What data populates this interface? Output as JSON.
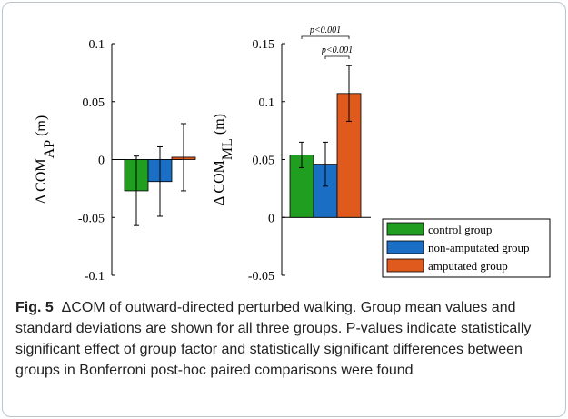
{
  "chart_data": [
    {
      "type": "bar",
      "ylabel": "Δ COM",
      "ylabel_sub": "AP",
      "ylabel_unit": "(m)",
      "ylim": [
        -0.1,
        0.1
      ],
      "yticks": [
        -0.1,
        -0.05,
        0,
        0.05,
        0.1
      ],
      "ytick_labels": [
        "-0.1",
        "-0.05",
        "0",
        "0.05",
        "0.1"
      ],
      "categories": [
        "control group",
        "non-amputated group",
        "amputated group"
      ],
      "values": [
        -0.027,
        -0.019,
        0.002
      ],
      "errors": [
        0.03,
        0.03,
        0.029
      ],
      "colors": [
        "#1f9e1f",
        "#1a6fc4",
        "#e05a1e"
      ],
      "annotations": []
    },
    {
      "type": "bar",
      "ylabel": "Δ COM",
      "ylabel_sub": "ML",
      "ylabel_unit": "(m)",
      "ylim": [
        -0.05,
        0.15
      ],
      "yticks": [
        -0.05,
        0,
        0.05,
        0.1,
        0.15
      ],
      "ytick_labels": [
        "-0.05",
        "0",
        "0.05",
        "0.1",
        "0.15"
      ],
      "categories": [
        "control group",
        "non-amputated group",
        "amputated group"
      ],
      "values": [
        0.054,
        0.046,
        0.107
      ],
      "errors": [
        0.011,
        0.019,
        0.024
      ],
      "colors": [
        "#1f9e1f",
        "#1a6fc4",
        "#e05a1e"
      ],
      "annotations": [
        {
          "text": "p<0.001",
          "from": 0,
          "to": 2
        },
        {
          "text": "p<0.001",
          "from": 1,
          "to": 2
        }
      ]
    }
  ],
  "legend": {
    "placement": "bottom-right",
    "entries": [
      {
        "label": "control group",
        "color": "#1f9e1f"
      },
      {
        "label": "non-amputated group",
        "color": "#1a6fc4"
      },
      {
        "label": "amputated group",
        "color": "#e05a1e"
      }
    ]
  },
  "caption": {
    "lead": "Fig. 5",
    "text": "ΔCOM of outward-directed perturbed walking. Group mean values and standard deviations are shown for all three groups. P-values indicate statistically significant effect of group factor and statistically significant differences between groups in Bonferroni post-hoc paired comparisons were found"
  }
}
